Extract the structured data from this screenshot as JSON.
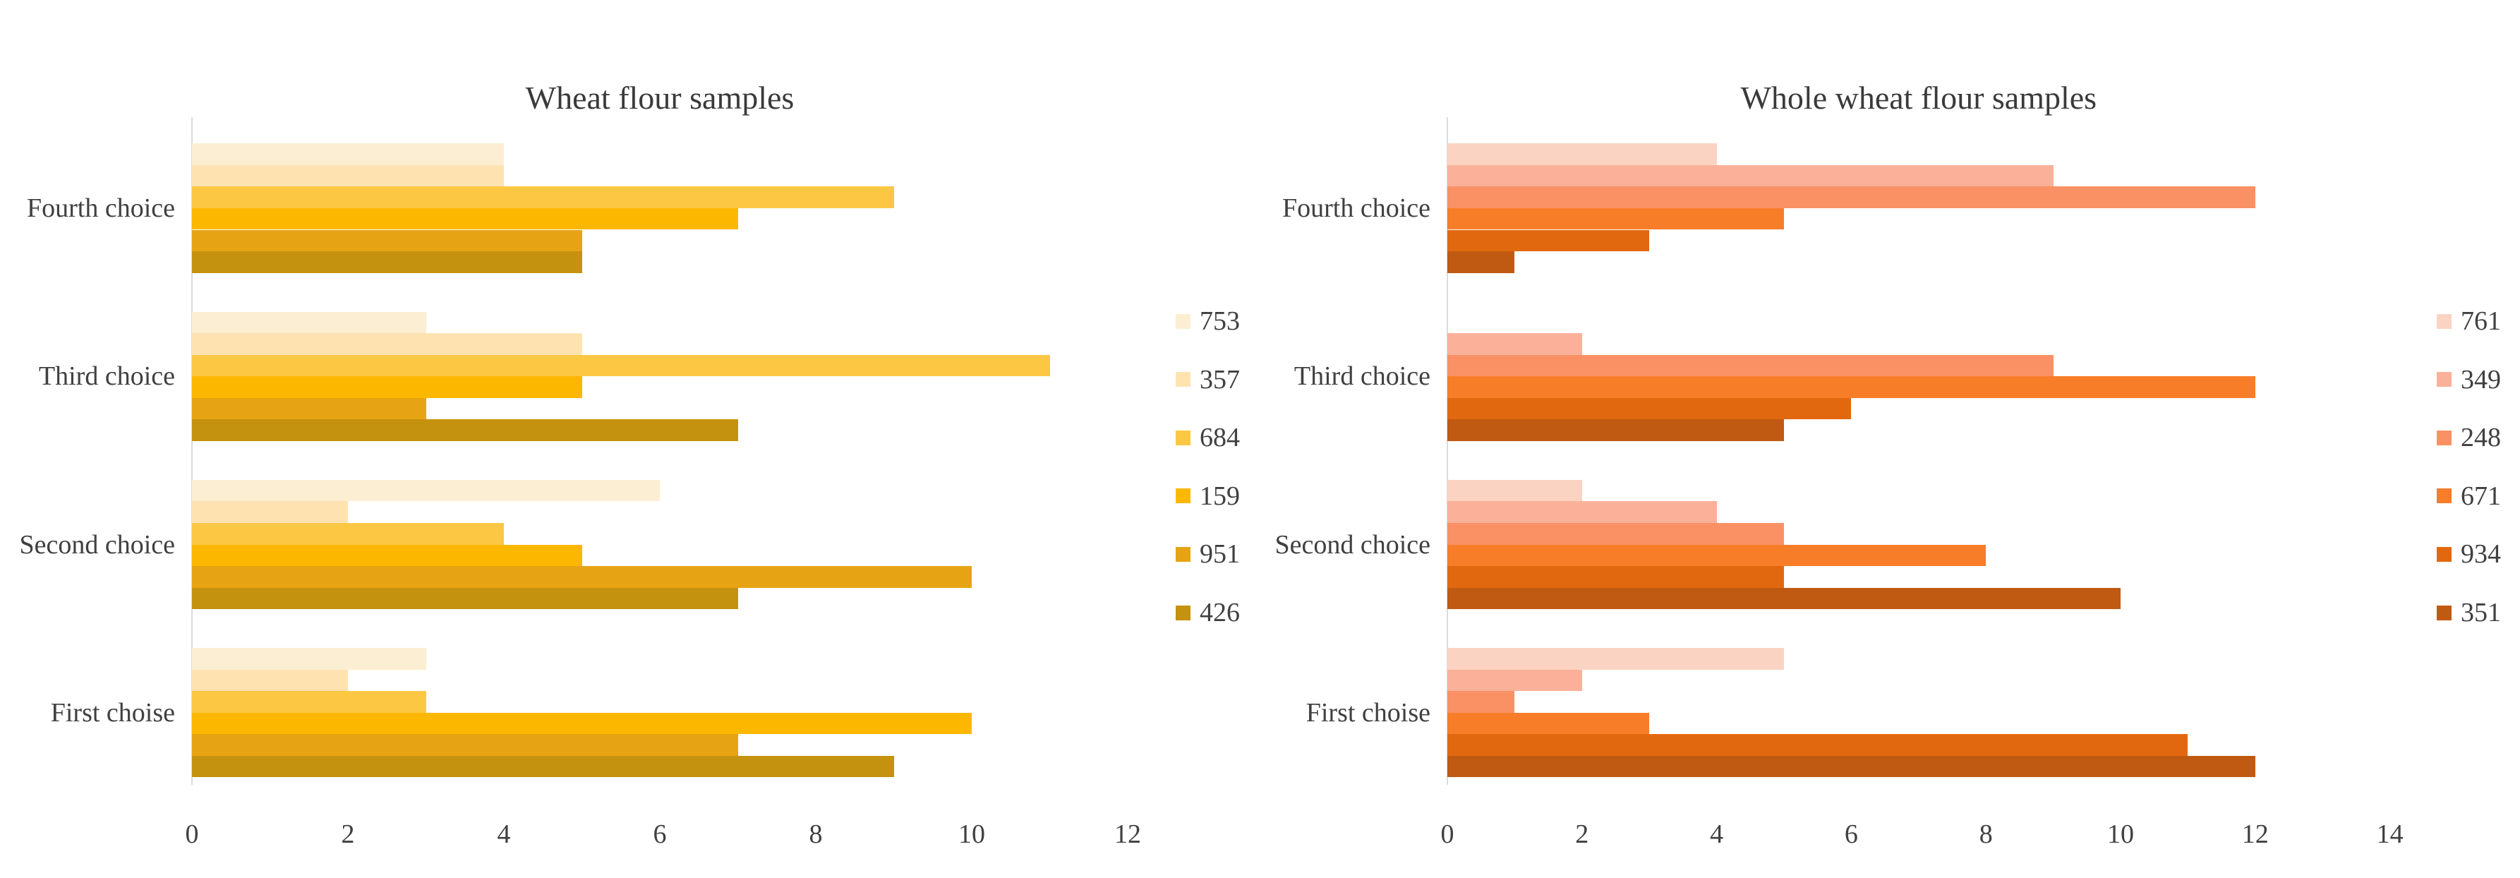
{
  "figure": {
    "left_title": "Wheat flour samples",
    "right_title": "Whole wheat flour samples"
  },
  "chart_data": [
    {
      "type": "bar",
      "orientation": "horizontal",
      "title": "Wheat flour samples",
      "categories": [
        "Fourth choice",
        "Third choice",
        "Second choice",
        "First choise"
      ],
      "series": [
        {
          "name": "753",
          "color": "#fceed2",
          "values": [
            4,
            3,
            6,
            3
          ]
        },
        {
          "name": "357",
          "color": "#fee3b1",
          "values": [
            4,
            5,
            2,
            2
          ]
        },
        {
          "name": "684",
          "color": "#fcc844",
          "values": [
            9,
            11,
            4,
            3
          ]
        },
        {
          "name": "159",
          "color": "#fcb800",
          "values": [
            7,
            5,
            5,
            10
          ]
        },
        {
          "name": "951",
          "color": "#e6a414",
          "values": [
            5,
            3,
            10,
            7
          ]
        },
        {
          "name": "426",
          "color": "#c4920e",
          "values": [
            5,
            7,
            7,
            9
          ]
        }
      ],
      "xlabel": "",
      "ylabel": "",
      "xlim": [
        0,
        12
      ],
      "xticks": [
        0,
        2,
        4,
        6,
        8,
        10,
        12
      ],
      "grid": false,
      "legend_position": "right",
      "legend_entries": [
        "753",
        "357",
        "684",
        "159",
        "951",
        "426"
      ]
    },
    {
      "type": "bar",
      "orientation": "horizontal",
      "title": "Whole wheat flour samples",
      "categories": [
        "Fourth choice",
        "Third choice",
        "Second choice",
        "First choise"
      ],
      "series": [
        {
          "name": "761",
          "color": "#fbd3c3",
          "values": [
            4,
            0,
            2,
            5
          ]
        },
        {
          "name": "349",
          "color": "#fbb199",
          "values": [
            9,
            2,
            4,
            2
          ]
        },
        {
          "name": "248",
          "color": "#fa9164",
          "values": [
            12,
            9,
            5,
            1
          ]
        },
        {
          "name": "671",
          "color": "#f87d28",
          "values": [
            5,
            12,
            8,
            3
          ]
        },
        {
          "name": "934",
          "color": "#e2680f",
          "values": [
            3,
            6,
            5,
            11
          ]
        },
        {
          "name": "351",
          "color": "#c05a12",
          "values": [
            1,
            5,
            10,
            12
          ]
        }
      ],
      "xlabel": "",
      "ylabel": "",
      "xlim": [
        0,
        14
      ],
      "xticks": [
        0,
        2,
        4,
        6,
        8,
        10,
        12,
        14
      ],
      "grid": false,
      "legend_position": "right",
      "legend_entries": [
        "761",
        "349",
        "248",
        "671",
        "934",
        "351"
      ]
    }
  ]
}
